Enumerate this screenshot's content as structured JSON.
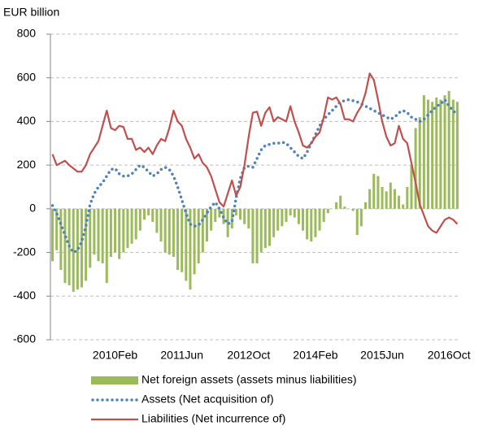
{
  "chart_data": {
    "type": "bar",
    "y_label": "EUR billion",
    "categories": [
      null,
      null,
      null,
      null,
      null,
      null,
      null,
      null,
      null,
      null,
      null,
      null,
      null,
      null,
      null,
      "2010Feb",
      null,
      null,
      null,
      null,
      null,
      null,
      null,
      null,
      null,
      null,
      null,
      null,
      null,
      null,
      null,
      "2011Jun",
      null,
      null,
      null,
      null,
      null,
      null,
      null,
      null,
      null,
      null,
      null,
      null,
      null,
      null,
      null,
      "2012Oct",
      null,
      null,
      null,
      null,
      null,
      null,
      null,
      null,
      null,
      null,
      null,
      null,
      null,
      null,
      null,
      "2014Feb",
      null,
      null,
      null,
      null,
      null,
      null,
      null,
      null,
      null,
      null,
      null,
      null,
      null,
      null,
      null,
      "2015Jun",
      null,
      null,
      null,
      null,
      null,
      null,
      null,
      null,
      null,
      null,
      null,
      null,
      null,
      null,
      null,
      "2016Oct",
      null,
      null
    ],
    "ylim": [
      -600,
      800
    ],
    "yticks": [
      -600,
      -400,
      -200,
      0,
      200,
      400,
      600,
      800
    ],
    "grid": true,
    "series": [
      {
        "name": "Net foreign assets (assets minus liabilities)",
        "type": "bar",
        "color": "#9bbb59",
        "values": [
          -240,
          -190,
          -280,
          -340,
          -350,
          -380,
          -370,
          -360,
          -330,
          -270,
          -210,
          -240,
          -250,
          -340,
          -220,
          -200,
          -230,
          -200,
          -180,
          -160,
          -140,
          -100,
          -50,
          -30,
          -60,
          -110,
          -150,
          -200,
          -210,
          -220,
          -280,
          -290,
          -330,
          -370,
          -300,
          -250,
          -200,
          -150,
          -100,
          -60,
          -40,
          -70,
          -130,
          -90,
          -30,
          -50,
          -70,
          -90,
          -250,
          -250,
          -200,
          -180,
          -170,
          -130,
          -100,
          -80,
          -60,
          -30,
          -40,
          -70,
          -100,
          -140,
          -150,
          -130,
          -100,
          -60,
          -20,
          0,
          30,
          60,
          10,
          0,
          -10,
          -120,
          -80,
          30,
          90,
          160,
          150,
          100,
          80,
          120,
          90,
          60,
          20,
          100,
          200,
          370,
          420,
          520,
          500,
          490,
          510,
          500,
          520,
          540,
          500,
          490
        ]
      },
      {
        "name": "Assets (Net acquisition of)",
        "type": "dotted-line",
        "color": "#4f81bd",
        "values": [
          15,
          -20,
          -70,
          -120,
          -170,
          -200,
          -190,
          -150,
          -80,
          20,
          70,
          100,
          120,
          150,
          180,
          185,
          160,
          150,
          150,
          160,
          180,
          200,
          190,
          170,
          150,
          160,
          180,
          190,
          180,
          150,
          100,
          40,
          -20,
          -70,
          -80,
          -75,
          -50,
          -20,
          10,
          30,
          0,
          -40,
          -70,
          -60,
          50,
          140,
          190,
          195,
          190,
          230,
          270,
          290,
          295,
          300,
          300,
          305,
          300,
          280,
          260,
          240,
          230,
          260,
          300,
          340,
          380,
          410,
          430,
          450,
          470,
          490,
          495,
          500,
          495,
          490,
          480,
          470,
          460,
          450,
          440,
          430,
          420,
          410,
          420,
          440,
          450,
          440,
          420,
          410,
          400,
          410,
          430,
          450,
          470,
          480,
          500,
          470,
          450,
          430
        ]
      },
      {
        "name": "Liabilities (Net incurrence of)",
        "type": "line",
        "color": "#c0504d",
        "values": [
          250,
          200,
          210,
          220,
          200,
          185,
          170,
          170,
          200,
          250,
          280,
          310,
          380,
          450,
          370,
          360,
          380,
          375,
          320,
          320,
          270,
          280,
          260,
          280,
          250,
          290,
          320,
          310,
          370,
          450,
          400,
          380,
          320,
          280,
          230,
          250,
          210,
          190,
          150,
          90,
          30,
          10,
          70,
          130,
          60,
          100,
          200,
          330,
          440,
          445,
          380,
          440,
          465,
          400,
          420,
          410,
          400,
          470,
          400,
          350,
          290,
          280,
          300,
          330,
          350,
          420,
          510,
          500,
          510,
          480,
          410,
          410,
          400,
          440,
          470,
          530,
          620,
          590,
          500,
          400,
          330,
          290,
          300,
          380,
          320,
          300,
          210,
          120,
          20,
          -30,
          -80,
          -100,
          -110,
          -80,
          -50,
          -40,
          -50,
          -70
        ]
      }
    ]
  }
}
